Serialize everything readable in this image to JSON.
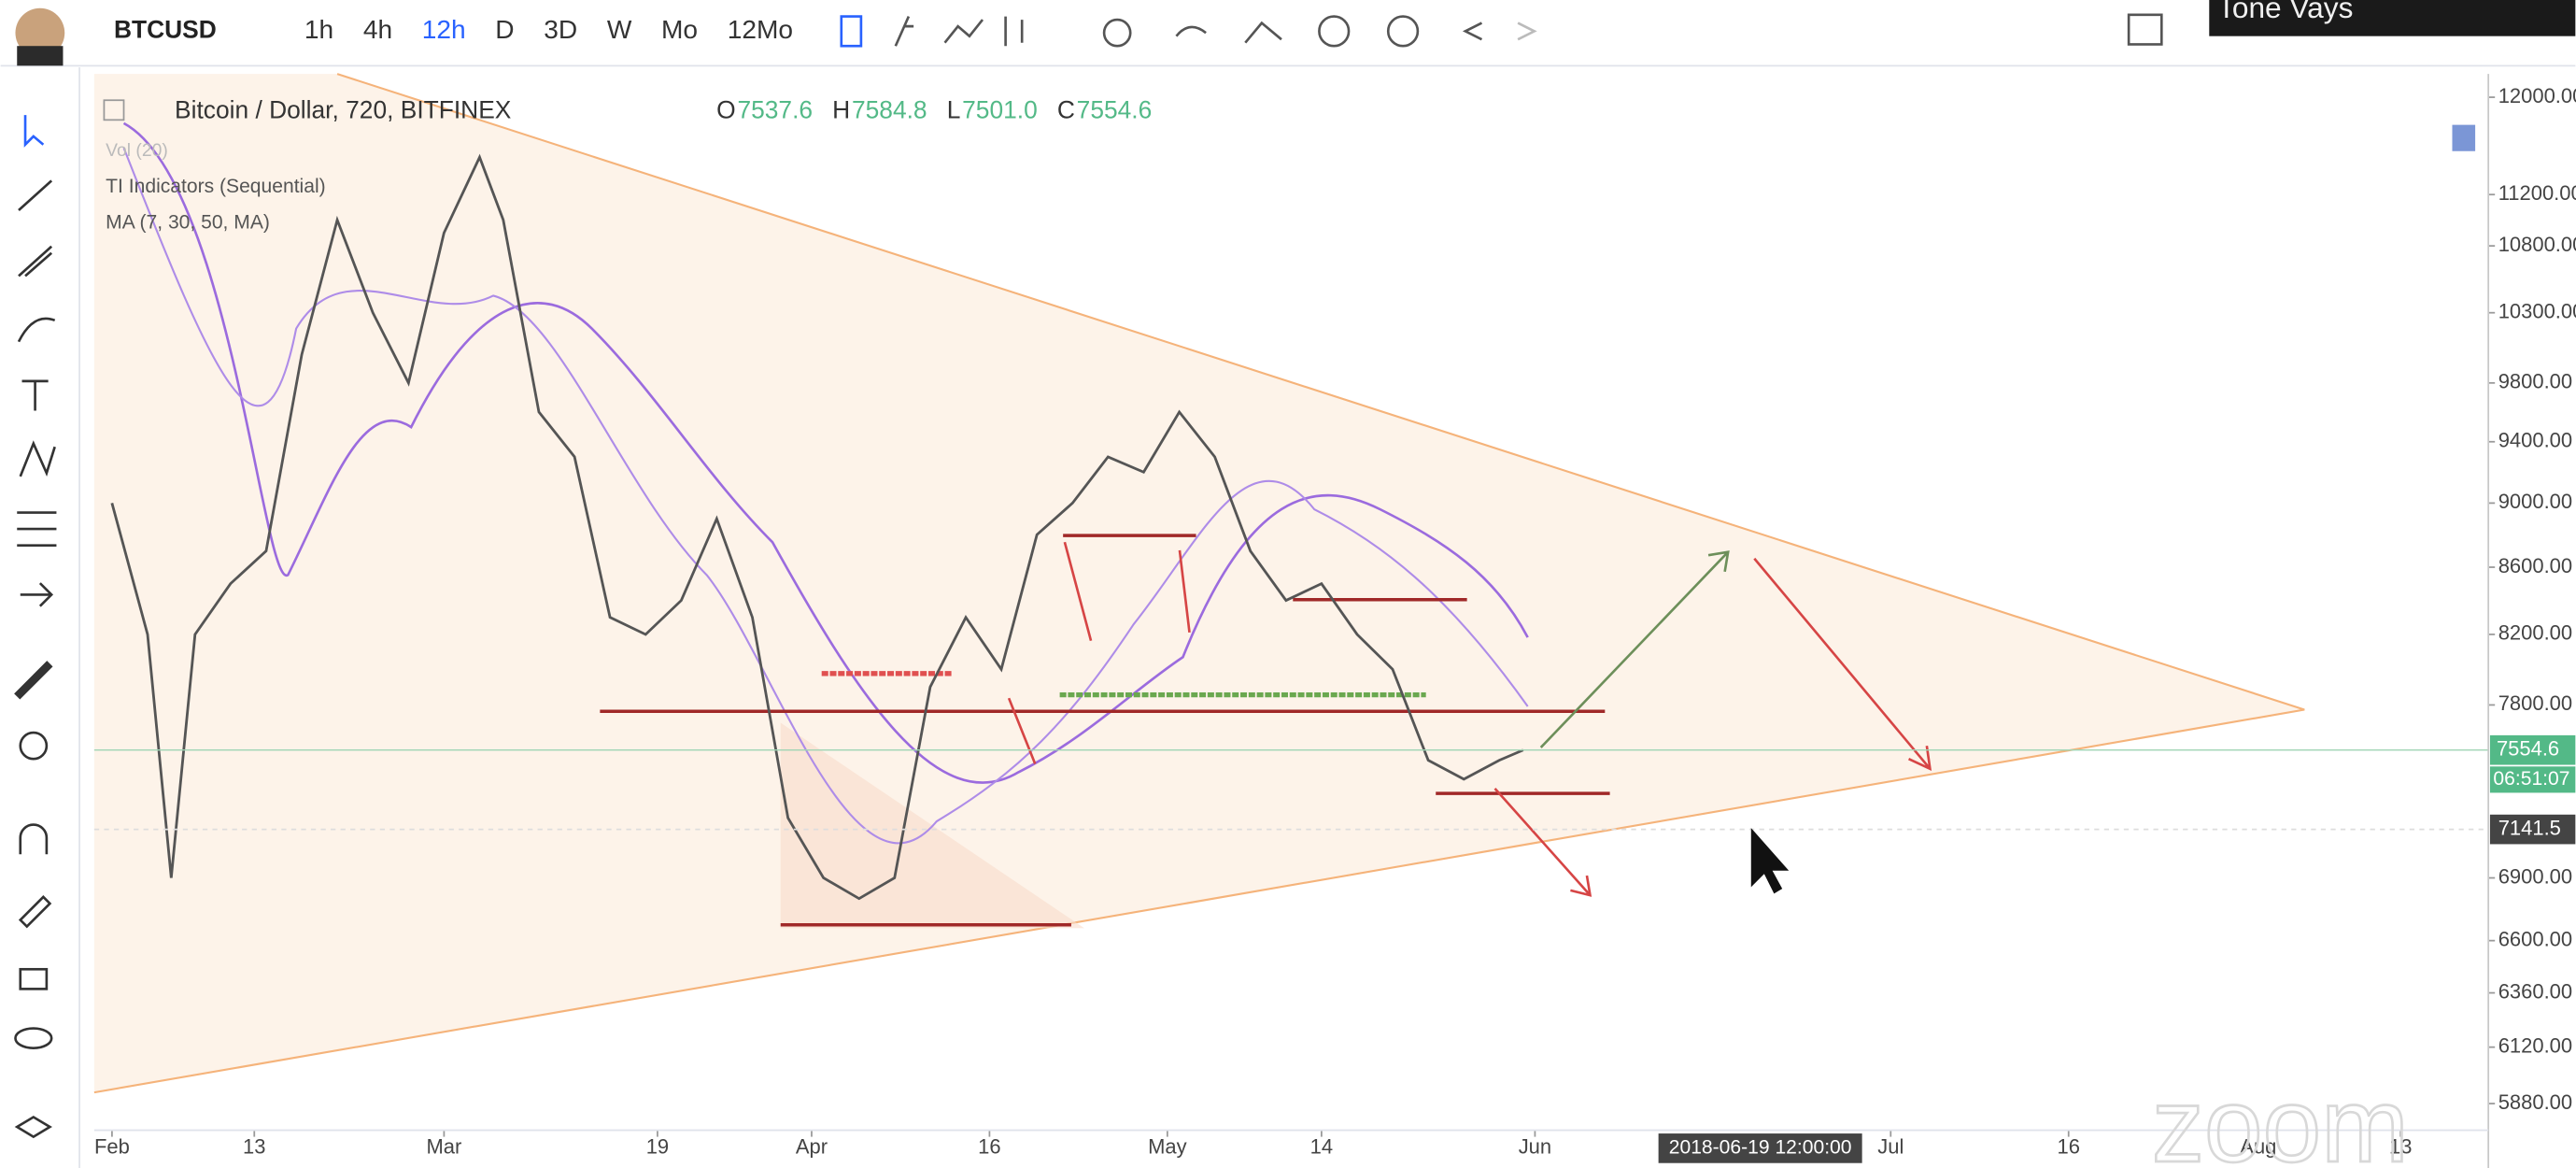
{
  "toolbar": {
    "symbol": "BTCUSD",
    "intervals": [
      "1h",
      "4h",
      "12h",
      "D",
      "3D",
      "W",
      "Mo",
      "12Mo"
    ],
    "active_interval": 2
  },
  "legend": {
    "title": "Bitcoin / Dollar, 720, BITFINEX",
    "ohlc": [
      {
        "label": "O",
        "value": 7537.6
      },
      {
        "label": "H",
        "value": 7584.8
      },
      {
        "label": "L",
        "value": 7501.0,
        "text": "7501.0"
      },
      {
        "label": "C",
        "value": 7554.6
      }
    ],
    "indicators": [
      "Vol (20)",
      "TI Indicators (Sequential)",
      "MA (7, 30, 50, MA)"
    ]
  },
  "video": {
    "presenter": "Tone Vays",
    "watermark": "zoom"
  },
  "chart_data": {
    "type": "line",
    "log_scale": true,
    "color": "#555555",
    "x": [
      0,
      3,
      5,
      7,
      10,
      13,
      16,
      19,
      22,
      25,
      28,
      31,
      33,
      36,
      39,
      42,
      45,
      48,
      51,
      54,
      57,
      60,
      63,
      66,
      69,
      72,
      75,
      78,
      81,
      84,
      87,
      90,
      93,
      96,
      99,
      102,
      105,
      108,
      111,
      114,
      117,
      119
    ],
    "values": [
      9000,
      8200,
      6900,
      8200,
      8500,
      8700,
      10000,
      11000,
      10300,
      9800,
      10900,
      11500,
      11000,
      9600,
      9300,
      8300,
      8200,
      8400,
      8900,
      8300,
      7200,
      6900,
      6800,
      6900,
      7900,
      8300,
      8000,
      8800,
      9000,
      9300,
      9200,
      9600,
      9300,
      8700,
      8400,
      8500,
      8200,
      8000,
      7500,
      7400,
      7500,
      7554.6
    ],
    "xlim": [
      -1.5,
      200.4
    ],
    "xticks": [
      {
        "value": 0,
        "label": "Feb"
      },
      {
        "value": 12,
        "label": "13"
      },
      {
        "value": 28,
        "label": "Mar"
      },
      {
        "value": 46,
        "label": "19"
      },
      {
        "value": 59,
        "label": "Apr"
      },
      {
        "value": 74,
        "label": "16"
      },
      {
        "value": 89,
        "label": "May"
      },
      {
        "value": 102,
        "label": "14"
      },
      {
        "value": 120,
        "label": "Jun"
      },
      {
        "value": 150,
        "label": "Jul"
      },
      {
        "value": 165,
        "label": "16"
      },
      {
        "value": 181,
        "label": "Aug"
      },
      {
        "value": 193,
        "label": "13"
      }
    ],
    "ylim": [
      5770,
      12200
    ],
    "yticks": [
      {
        "value": 12000,
        "label": "12000.00"
      },
      {
        "value": 11200,
        "label": "11200.00"
      },
      {
        "value": 10800,
        "label": "10800.00"
      },
      {
        "value": 10300,
        "label": "10300.00"
      },
      {
        "value": 9800,
        "label": "9800.00"
      },
      {
        "value": 9400,
        "label": "9400.00"
      },
      {
        "value": 9000,
        "label": "9000.00"
      },
      {
        "value": 8600,
        "label": "8600.00"
      },
      {
        "value": 8200,
        "label": "8200.00"
      },
      {
        "value": 7800,
        "label": "7800.00"
      },
      {
        "value": 6900,
        "label": "6900.00"
      },
      {
        "value": 6600,
        "label": "6600.00"
      },
      {
        "value": 6360,
        "label": "6360.00"
      },
      {
        "value": 6120,
        "label": "6120.00"
      },
      {
        "value": 5880,
        "label": "5880.00"
      }
    ],
    "last_price": {
      "value": 7554.6,
      "label": "7554.6"
    },
    "countdown": "06:51:07",
    "crosshair_price": {
      "value": 7141.5,
      "label": "7141.5"
    },
    "crosshair_time": {
      "value": 139,
      "label": "2018-06-19 12:00:00"
    }
  }
}
